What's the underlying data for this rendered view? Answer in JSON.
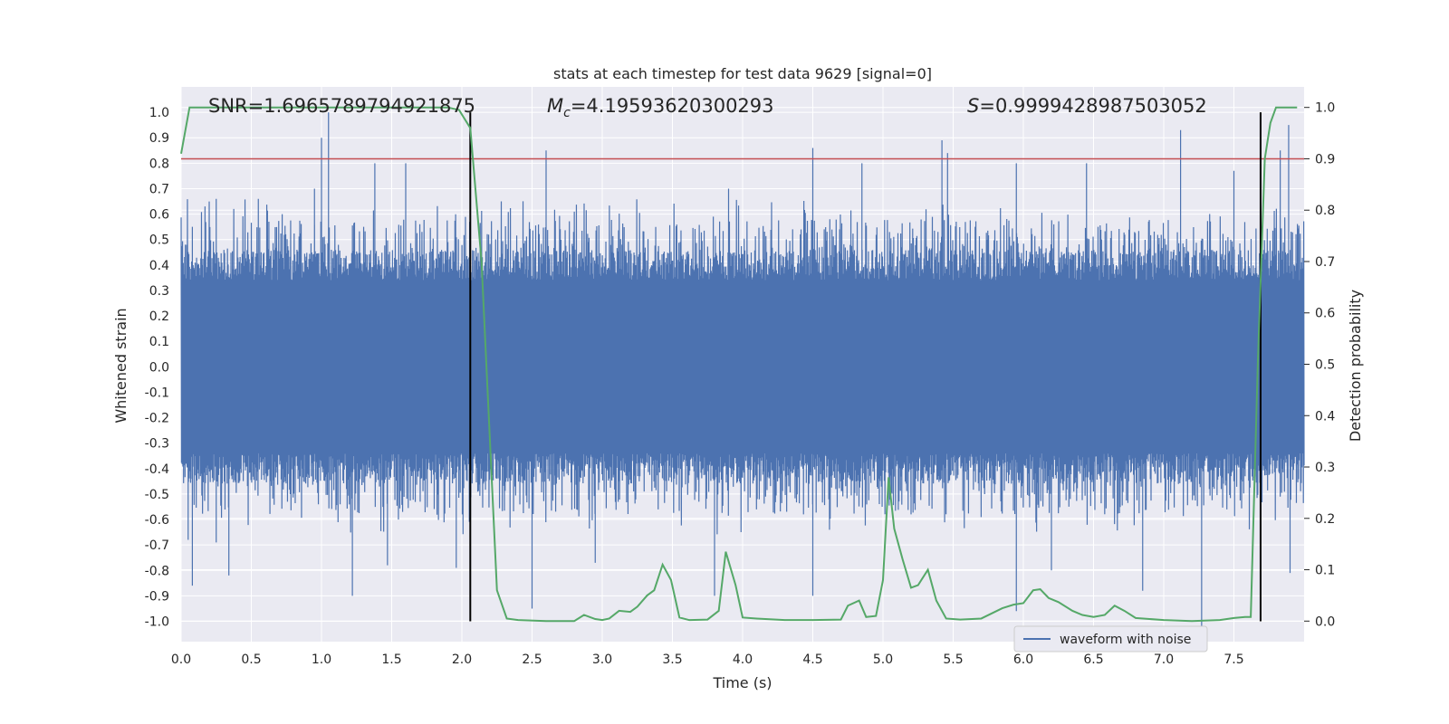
{
  "chart_data": {
    "type": "line",
    "title": "stats at each timestep for test data 9629 [signal=0]",
    "xlabel": "Time (s)",
    "ylabel_left": "Whitened strain",
    "ylabel_right": "Detection probability",
    "xlim": [
      0,
      8
    ],
    "ylim_left": [
      -1.08,
      1.1
    ],
    "ylim_right": [
      -0.04,
      1.04
    ],
    "x_ticks": [
      "0.0",
      "0.5",
      "1.0",
      "1.5",
      "2.0",
      "2.5",
      "3.0",
      "3.5",
      "4.0",
      "4.5",
      "5.0",
      "5.5",
      "6.0",
      "6.5",
      "7.0",
      "7.5"
    ],
    "x_tick_values": [
      0,
      0.5,
      1,
      1.5,
      2,
      2.5,
      3,
      3.5,
      4,
      4.5,
      5,
      5.5,
      6,
      6.5,
      7,
      7.5
    ],
    "y_ticks_left": [
      "1.0",
      "0.9",
      "0.8",
      "0.7",
      "0.6",
      "0.5",
      "0.4",
      "0.3",
      "0.2",
      "0.1",
      "0.0",
      "-0.1",
      "-0.2",
      "-0.3",
      "-0.4",
      "-0.5",
      "-0.6",
      "-0.7",
      "-0.8",
      "-0.9",
      "-1.0"
    ],
    "y_tick_values_left": [
      1,
      0.9,
      0.8,
      0.7,
      0.6,
      0.5,
      0.4,
      0.3,
      0.2,
      0.1,
      0,
      -0.1,
      -0.2,
      -0.3,
      -0.4,
      -0.5,
      -0.6,
      -0.7,
      -0.8,
      -0.9,
      -1
    ],
    "y_ticks_right": [
      "1.0",
      "0.9",
      "0.8",
      "0.7",
      "0.6",
      "0.5",
      "0.4",
      "0.3",
      "0.2",
      "0.1",
      "0.0"
    ],
    "y_tick_values_right": [
      1,
      0.9,
      0.8,
      0.7,
      0.6,
      0.5,
      0.4,
      0.3,
      0.2,
      0.1,
      0
    ],
    "grid": true,
    "annotations": [
      {
        "text": "SNR=1.6965789794921875"
      },
      {
        "prefix": "M",
        "sub": "c",
        "text": "=4.19593620300293"
      },
      {
        "prefix": "S",
        "text": "=0.9999428987503052"
      }
    ],
    "threshold": {
      "value": 0.9,
      "axis": "right",
      "color": "#c44e52"
    },
    "vertical_lines": [
      2.06,
      7.69
    ],
    "legend": {
      "position": "lower-right",
      "entries": [
        {
          "name": "waveform with noise",
          "color": "#4c72b0"
        }
      ]
    },
    "series": [
      {
        "name": "waveform with noise",
        "axis": "left",
        "color": "#4c72b0",
        "style": "dense-noise",
        "x_range": [
          0,
          8
        ],
        "typical_amplitude": 0.4,
        "peaks": [
          {
            "x": 0.03,
            "y": 0.48
          },
          {
            "x": 0.05,
            "y": -0.68
          },
          {
            "x": 0.08,
            "y": 0.55
          },
          {
            "x": 0.08,
            "y": -0.86
          },
          {
            "x": 0.17,
            "y": 0.63
          },
          {
            "x": 0.25,
            "y": 0.66
          },
          {
            "x": 0.25,
            "y": -0.69
          },
          {
            "x": 0.34,
            "y": -0.82
          },
          {
            "x": 0.55,
            "y": 0.66
          },
          {
            "x": 0.72,
            "y": 0.6
          },
          {
            "x": 0.95,
            "y": 0.7
          },
          {
            "x": 1.0,
            "y": 0.9
          },
          {
            "x": 1.05,
            "y": 1.0
          },
          {
            "x": 1.22,
            "y": -0.9
          },
          {
            "x": 1.38,
            "y": 0.8
          },
          {
            "x": 1.47,
            "y": -0.78
          },
          {
            "x": 1.6,
            "y": 0.8
          },
          {
            "x": 1.96,
            "y": -0.79
          },
          {
            "x": 2.6,
            "y": 0.85
          },
          {
            "x": 2.5,
            "y": -0.95
          },
          {
            "x": 2.95,
            "y": -0.77
          },
          {
            "x": 3.8,
            "y": -0.9
          },
          {
            "x": 3.9,
            "y": 0.7
          },
          {
            "x": 4.5,
            "y": 0.86
          },
          {
            "x": 4.5,
            "y": -0.9
          },
          {
            "x": 4.85,
            "y": 0.8
          },
          {
            "x": 5.05,
            "y": -0.52
          },
          {
            "x": 5.2,
            "y": -0.58
          },
          {
            "x": 5.42,
            "y": 0.89
          },
          {
            "x": 5.46,
            "y": 0.84
          },
          {
            "x": 5.95,
            "y": 0.8
          },
          {
            "x": 5.95,
            "y": -0.96
          },
          {
            "x": 6.2,
            "y": -0.8
          },
          {
            "x": 6.45,
            "y": 0.8
          },
          {
            "x": 6.85,
            "y": -0.88
          },
          {
            "x": 7.12,
            "y": 0.93
          },
          {
            "x": 7.27,
            "y": -1.02
          },
          {
            "x": 7.5,
            "y": 0.77
          },
          {
            "x": 7.83,
            "y": 0.85
          },
          {
            "x": 7.89,
            "y": 0.95
          },
          {
            "x": 7.9,
            "y": -0.81
          }
        ]
      },
      {
        "name": "",
        "axis": "right",
        "color": "#55a868",
        "x": [
          0,
          0.06,
          0.1,
          0.5,
          1.0,
          1.5,
          1.9,
          1.98,
          2.06,
          2.14,
          2.25,
          2.32,
          2.4,
          2.6,
          2.8,
          2.87,
          2.95,
          3.0,
          3.05,
          3.12,
          3.2,
          3.25,
          3.32,
          3.37,
          3.43,
          3.49,
          3.55,
          3.62,
          3.75,
          3.83,
          3.88,
          3.95,
          4.0,
          4.1,
          4.3,
          4.5,
          4.7,
          4.75,
          4.83,
          4.88,
          4.95,
          5.0,
          5.04,
          5.08,
          5.14,
          5.2,
          5.25,
          5.32,
          5.38,
          5.45,
          5.55,
          5.7,
          5.85,
          5.93,
          6.0,
          6.07,
          6.12,
          6.18,
          6.25,
          6.35,
          6.42,
          6.5,
          6.58,
          6.65,
          6.72,
          6.8,
          7.0,
          7.2,
          7.4,
          7.5,
          7.58,
          7.62,
          7.67,
          7.72,
          7.76,
          7.8,
          7.85,
          7.9,
          7.95
        ],
        "y": [
          0.91,
          1.0,
          1.0,
          1.0,
          1.0,
          1.0,
          1.0,
          0.995,
          0.96,
          0.7,
          0.06,
          0.005,
          0.002,
          0.0,
          0.0,
          0.012,
          0.004,
          0.002,
          0.005,
          0.02,
          0.018,
          0.028,
          0.05,
          0.06,
          0.11,
          0.08,
          0.007,
          0.002,
          0.003,
          0.02,
          0.135,
          0.07,
          0.007,
          0.005,
          0.002,
          0.002,
          0.003,
          0.03,
          0.04,
          0.008,
          0.01,
          0.08,
          0.28,
          0.18,
          0.12,
          0.065,
          0.07,
          0.1,
          0.04,
          0.005,
          0.003,
          0.005,
          0.025,
          0.032,
          0.035,
          0.06,
          0.062,
          0.045,
          0.037,
          0.02,
          0.012,
          0.008,
          0.012,
          0.03,
          0.02,
          0.006,
          0.002,
          0.0,
          0.002,
          0.006,
          0.008,
          0.008,
          0.5,
          0.9,
          0.97,
          1.0,
          1.0,
          1.0,
          1.0
        ]
      }
    ]
  }
}
